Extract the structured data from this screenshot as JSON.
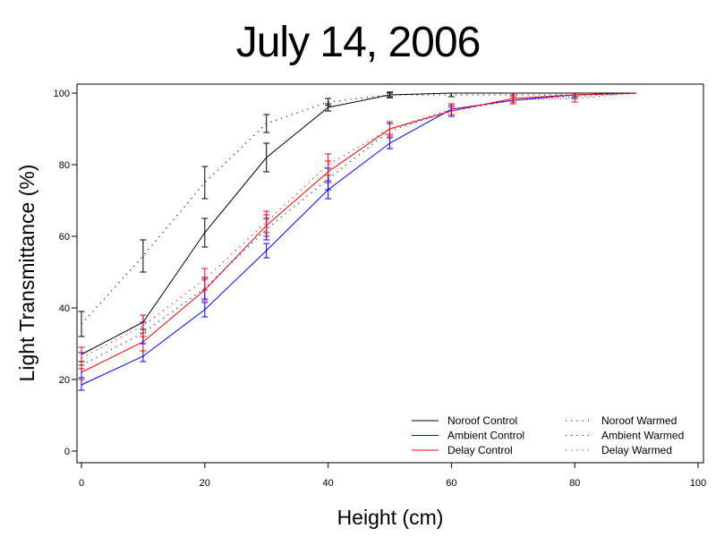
{
  "chart_data": {
    "type": "line",
    "title": "July 14, 2006",
    "xlabel": "Height (cm)",
    "ylabel": "Light Transmittance (%)",
    "xlim": [
      0,
      100
    ],
    "ylim": [
      0,
      100
    ],
    "xticks": [
      0,
      20,
      40,
      60,
      80,
      100
    ],
    "yticks": [
      0,
      20,
      40,
      60,
      80,
      100
    ],
    "grid": false,
    "legend_position": "bottom-right",
    "x": [
      0,
      10,
      20,
      30,
      40,
      50,
      60,
      70,
      80,
      90
    ],
    "series": [
      {
        "name": "Noroof Control",
        "style": "solid",
        "color": "#000000",
        "values": [
          27,
          36,
          61,
          82,
          96,
          99.5,
          100,
          100,
          100,
          100
        ],
        "err": [
          2,
          2,
          4,
          4,
          1,
          0.8,
          0,
          0,
          0,
          0
        ]
      },
      {
        "name": "Ambient Control",
        "style": "solid",
        "color": "#0000ff",
        "values": [
          18.5,
          26.5,
          39.5,
          56,
          73,
          86,
          95.5,
          98,
          99.5,
          100
        ],
        "err": [
          1.5,
          1.5,
          2,
          2,
          2.5,
          1.5,
          1.5,
          1,
          0.5,
          0
        ]
      },
      {
        "name": "Delay Control",
        "style": "solid",
        "color": "#ff0000",
        "values": [
          22,
          30.5,
          45,
          63,
          78,
          90,
          95,
          98.5,
          99.5,
          100
        ],
        "err": [
          2,
          2.5,
          3,
          3,
          3,
          1.5,
          1,
          1,
          0.5,
          0
        ]
      },
      {
        "name": "Noroof Warmed",
        "style": "dotted",
        "color": "#000000",
        "values": [
          35.5,
          54.5,
          75,
          91.5,
          97.5,
          99.5,
          99.5,
          99.5,
          99.5,
          100
        ],
        "err": [
          3.5,
          4.5,
          4.5,
          2.5,
          1,
          0.5,
          0.5,
          0.5,
          0.5,
          0
        ]
      },
      {
        "name": "Ambient Warmed",
        "style": "dotted",
        "color": "#0000ff",
        "values": [
          24,
          33,
          45.5,
          62,
          76,
          89.5,
          95,
          98,
          99,
          100
        ],
        "err": [
          3.5,
          3,
          3,
          3,
          3,
          2,
          1.5,
          1,
          0.5,
          0
        ]
      },
      {
        "name": "Delay Warmed",
        "style": "dotted",
        "color": "#ff0000",
        "values": [
          26,
          35,
          48,
          64,
          80,
          90,
          95.5,
          98,
          98.5,
          100
        ],
        "err": [
          3,
          3,
          3,
          3,
          3,
          2,
          1.5,
          1,
          1,
          0
        ]
      }
    ]
  }
}
